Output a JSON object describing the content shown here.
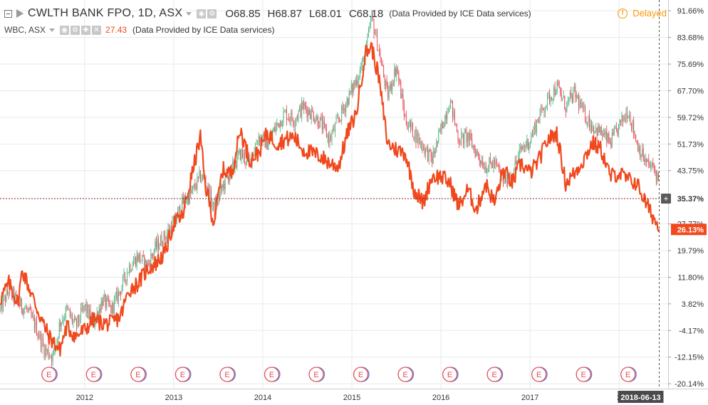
{
  "header": {
    "main_symbol": "CWLTH BANK FPO, 1D, ASX",
    "ohlc": [
      {
        "label": "O",
        "value": "68.85"
      },
      {
        "label": "H",
        "value": "68.87"
      },
      {
        "label": "L",
        "value": "68.01"
      },
      {
        "label": "C",
        "value": "68.18"
      }
    ],
    "provided_note": "(Data Provided by ICE Data services)",
    "compare_symbol": "WBC, ASX",
    "compare_value": "27.43",
    "compare_provided_note": "(Data Provided by ICE Data services)",
    "delayed_label": "Delayed",
    "delayed_icon": "!"
  },
  "colors": {
    "up": "#53b987",
    "down": "#eb4d5c",
    "compare": "#f0491e",
    "grid": "#e5e9ee",
    "crosshair": "#9b1c1c",
    "axis_text": "#333333",
    "earnings_border": "#e0505a"
  },
  "chart_data": {
    "type": "line",
    "y_unit": "percent change",
    "y_ticks": [
      "91.66%",
      "83.68%",
      "75.69%",
      "67.70%",
      "59.72%",
      "51.73%",
      "43.75%",
      "27.77%",
      "19.79%",
      "11.80%",
      "3.82%",
      "-4.17%",
      "-12.15%",
      "-20.14%"
    ],
    "y_tick_values": [
      91.66,
      83.68,
      75.69,
      67.7,
      59.72,
      51.73,
      43.75,
      27.77,
      19.79,
      11.8,
      3.82,
      -4.17,
      -12.15,
      -20.14
    ],
    "ylim": [
      -21.6,
      94.9
    ],
    "x_ticks": [
      "2012",
      "2013",
      "2014",
      "2015",
      "2016",
      "2017",
      "2"
    ],
    "x_tick_values": [
      2012.0,
      2013.0,
      2014.0,
      2015.0,
      2016.0,
      2017.0,
      2018.0
    ],
    "xlim": [
      2011.05,
      2018.55
    ],
    "series": [
      {
        "name": "CWLTH BANK FPO, 1D, ASX",
        "style": "candles",
        "x": [
          2011.05,
          2011.15,
          2011.25,
          2011.35,
          2011.45,
          2011.55,
          2011.65,
          2011.72,
          2011.8,
          2011.9,
          2012.0,
          2012.1,
          2012.2,
          2012.3,
          2012.4,
          2012.5,
          2012.6,
          2012.7,
          2012.8,
          2012.9,
          2013.0,
          2013.1,
          2013.2,
          2013.3,
          2013.35,
          2013.45,
          2013.55,
          2013.65,
          2013.75,
          2013.85,
          2013.95,
          2014.05,
          2014.15,
          2014.25,
          2014.35,
          2014.45,
          2014.55,
          2014.65,
          2014.75,
          2014.85,
          2014.95,
          2015.05,
          2015.15,
          2015.22,
          2015.3,
          2015.4,
          2015.5,
          2015.6,
          2015.7,
          2015.8,
          2015.9,
          2016.0,
          2016.1,
          2016.2,
          2016.3,
          2016.4,
          2016.5,
          2016.6,
          2016.7,
          2016.8,
          2016.9,
          2017.0,
          2017.1,
          2017.2,
          2017.3,
          2017.4,
          2017.5,
          2017.6,
          2017.7,
          2017.8,
          2017.9,
          2018.0,
          2018.1,
          2018.2,
          2018.3,
          2018.4,
          2018.45
        ],
        "values": [
          2,
          8,
          4,
          2,
          -3,
          -10,
          -12,
          -2,
          2,
          -3,
          3,
          -2,
          5,
          2,
          8,
          15,
          18,
          15,
          21,
          24,
          28,
          34,
          37,
          42,
          41,
          32,
          39,
          44,
          49,
          46,
          54,
          52,
          57,
          61,
          59,
          63,
          61,
          58,
          53,
          59,
          65,
          71,
          78,
          90,
          80,
          66,
          75,
          59,
          55,
          51,
          47,
          56,
          65,
          53,
          54,
          49,
          45,
          46,
          41,
          43,
          50,
          53,
          60,
          65,
          69,
          63,
          67,
          61,
          57,
          55,
          52,
          57,
          62,
          52,
          46,
          44,
          40
        ]
      },
      {
        "name": "WBC, ASX",
        "style": "line",
        "x": [
          2011.05,
          2011.15,
          2011.25,
          2011.3,
          2011.4,
          2011.5,
          2011.6,
          2011.72,
          2011.8,
          2011.9,
          2012.0,
          2012.1,
          2012.2,
          2012.3,
          2012.4,
          2012.5,
          2012.6,
          2012.7,
          2012.8,
          2012.9,
          2013.0,
          2013.1,
          2013.2,
          2013.3,
          2013.35,
          2013.45,
          2013.55,
          2013.65,
          2013.75,
          2013.85,
          2013.95,
          2014.05,
          2014.15,
          2014.25,
          2014.35,
          2014.45,
          2014.55,
          2014.65,
          2014.75,
          2014.85,
          2014.95,
          2015.05,
          2015.15,
          2015.22,
          2015.3,
          2015.4,
          2015.5,
          2015.6,
          2015.7,
          2015.8,
          2015.9,
          2016.0,
          2016.1,
          2016.2,
          2016.3,
          2016.4,
          2016.5,
          2016.6,
          2016.7,
          2016.8,
          2016.9,
          2017.0,
          2017.1,
          2017.2,
          2017.3,
          2017.4,
          2017.5,
          2017.6,
          2017.7,
          2017.8,
          2017.9,
          2018.0,
          2018.1,
          2018.2,
          2018.3,
          2018.4,
          2018.45
        ],
        "values": [
          5,
          10,
          4,
          14,
          7,
          0,
          -6,
          -10,
          -3,
          -6,
          -4,
          -1,
          -2,
          -2,
          0,
          8,
          10,
          14,
          16,
          19,
          28,
          30,
          42,
          54,
          40,
          28,
          44,
          43,
          56,
          47,
          49,
          55,
          52,
          53,
          54,
          50,
          49,
          48,
          46,
          45,
          55,
          61,
          79,
          81,
          72,
          52,
          50,
          49,
          38,
          34,
          42,
          42,
          40,
          33,
          38,
          32,
          40,
          34,
          44,
          40,
          46,
          43,
          47,
          53,
          55,
          40,
          43,
          47,
          52,
          50,
          42,
          43,
          41,
          40,
          34,
          29,
          26.13
        ]
      }
    ],
    "last_value_labels": [
      {
        "text": "35.37%",
        "value": 35.37,
        "series": "crosshair"
      },
      {
        "text": "26.13%",
        "value": 26.13,
        "series": "WBC, ASX"
      }
    ],
    "date_label": "2018-06-13",
    "crosshair_value": 35.37,
    "crosshair_date": 2018.45,
    "earnings_label": "E",
    "earnings_dates": [
      2011.6,
      2012.1,
      2012.6,
      2013.1,
      2013.6,
      2014.1,
      2014.6,
      2015.1,
      2015.6,
      2016.1,
      2016.6,
      2017.1,
      2017.6,
      2018.1
    ],
    "grid": true
  }
}
